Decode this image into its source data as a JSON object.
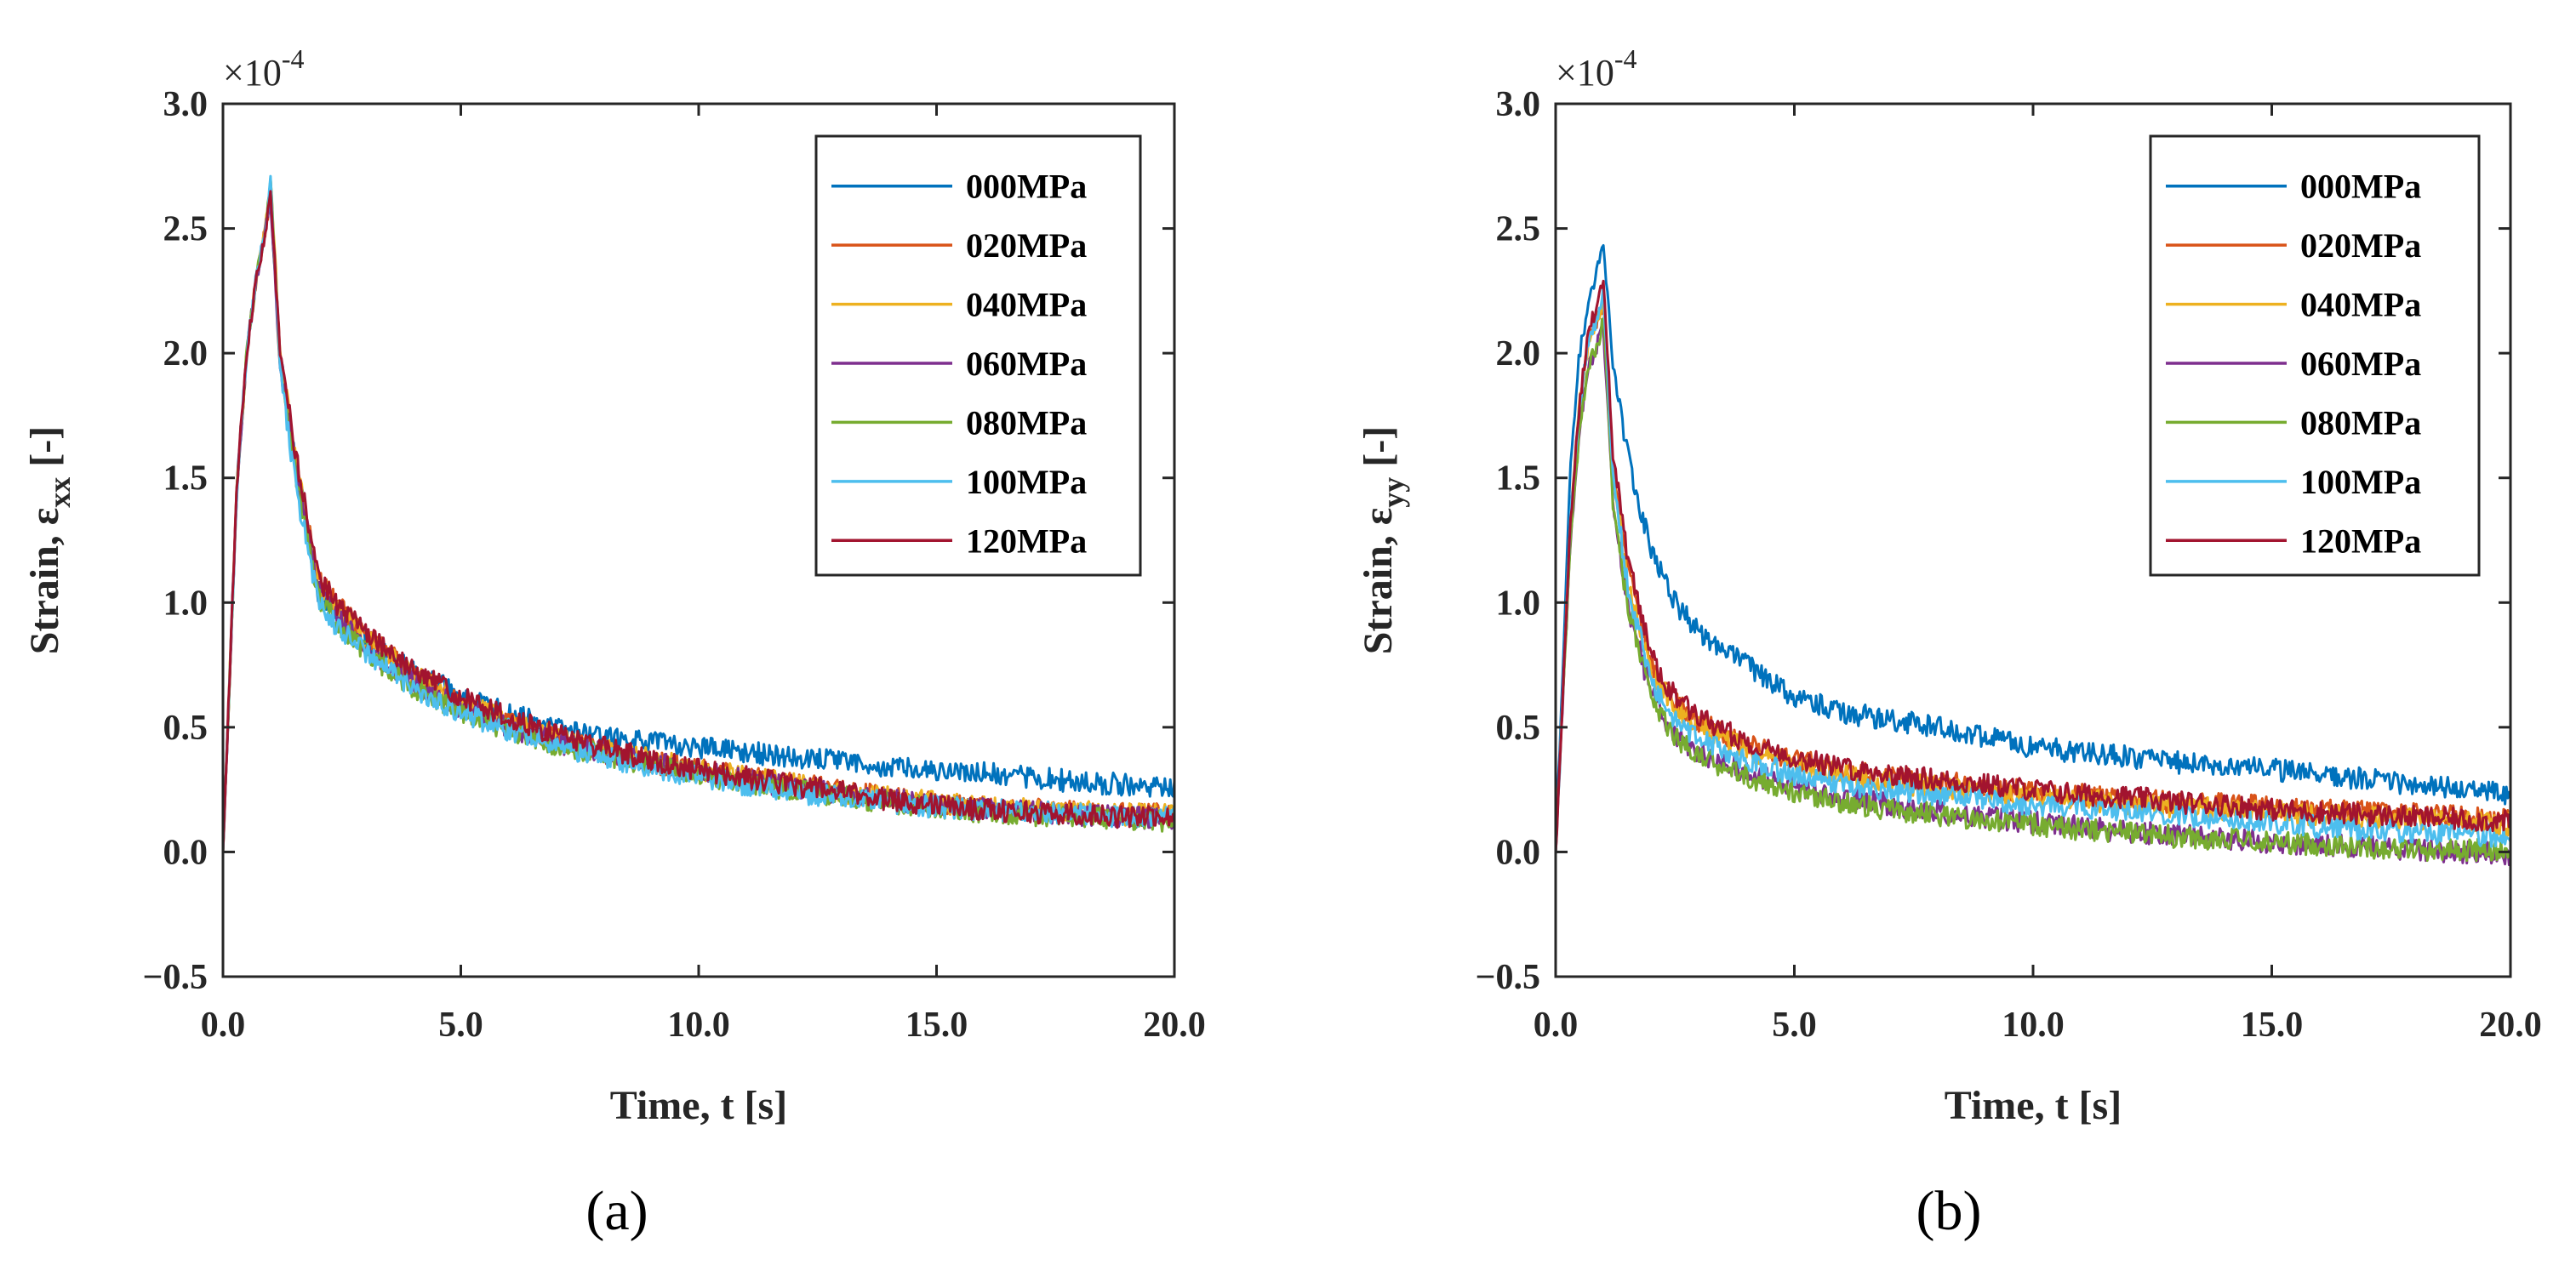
{
  "chart_data": [
    {
      "type": "line",
      "panel_label": "(a)",
      "xlabel": "Time, t [s]",
      "ylabel": "Strain, ε",
      "ylabel_sub": "xx",
      "ylabel_suffix": "[-]",
      "y_multiplier": "×10",
      "y_exponent": "-4",
      "xlim": [
        0,
        20
      ],
      "ylim": [
        -0.5,
        3.0
      ],
      "x_ticks": [
        0,
        5,
        10,
        15,
        20
      ],
      "x_tick_labels": [
        "0.0",
        "5.0",
        "10.0",
        "15.0",
        "20.0"
      ],
      "y_ticks": [
        -0.5,
        0,
        0.5,
        1.0,
        1.5,
        2.0,
        2.5,
        3.0
      ],
      "y_tick_labels": [
        "−0.5",
        "0.0",
        "0.5",
        "1.0",
        "1.5",
        "2.0",
        "2.5",
        "3.0"
      ],
      "legend_position": "top-right",
      "grid": false,
      "x": [
        0,
        0.1,
        0.3,
        0.5,
        0.7,
        0.9,
        1.0,
        1.2,
        1.5,
        2,
        2.5,
        3,
        4,
        5,
        6,
        7,
        8,
        9,
        10,
        11,
        12,
        13,
        14,
        15,
        16,
        17,
        18,
        19,
        20
      ],
      "series": [
        {
          "name": "000MPa",
          "color": "#0072BD",
          "values": [
            0,
            0.5,
            1.5,
            2.0,
            2.3,
            2.5,
            2.62,
            2.0,
            1.6,
            1.05,
            0.95,
            0.85,
            0.72,
            0.63,
            0.56,
            0.5,
            0.46,
            0.44,
            0.42,
            0.4,
            0.38,
            0.36,
            0.34,
            0.33,
            0.32,
            0.3,
            0.28,
            0.27,
            0.26
          ]
        },
        {
          "name": "020MPa",
          "color": "#D95319",
          "values": [
            0,
            0.5,
            1.5,
            2.0,
            2.3,
            2.5,
            2.65,
            2.0,
            1.6,
            1.1,
            0.97,
            0.87,
            0.72,
            0.6,
            0.52,
            0.45,
            0.4,
            0.36,
            0.33,
            0.3,
            0.27,
            0.25,
            0.22,
            0.2,
            0.18,
            0.17,
            0.16,
            0.15,
            0.15
          ]
        },
        {
          "name": "040MPa",
          "color": "#EDB120",
          "values": [
            0,
            0.5,
            1.5,
            2.0,
            2.3,
            2.5,
            2.72,
            2.0,
            1.6,
            1.08,
            0.95,
            0.85,
            0.71,
            0.6,
            0.52,
            0.46,
            0.41,
            0.37,
            0.33,
            0.3,
            0.27,
            0.24,
            0.22,
            0.2,
            0.18,
            0.17,
            0.16,
            0.15,
            0.15
          ]
        },
        {
          "name": "060MPa",
          "color": "#7E2F8E",
          "values": [
            0,
            0.5,
            1.5,
            2.0,
            2.3,
            2.5,
            2.6,
            1.95,
            1.58,
            1.05,
            0.92,
            0.82,
            0.68,
            0.58,
            0.5,
            0.44,
            0.4,
            0.36,
            0.32,
            0.29,
            0.26,
            0.23,
            0.21,
            0.19,
            0.17,
            0.16,
            0.15,
            0.14,
            0.13
          ]
        },
        {
          "name": "080MPa",
          "color": "#77AC30",
          "values": [
            0,
            0.5,
            1.5,
            2.0,
            2.3,
            2.5,
            2.7,
            1.95,
            1.55,
            1.02,
            0.9,
            0.8,
            0.66,
            0.56,
            0.49,
            0.43,
            0.39,
            0.35,
            0.31,
            0.28,
            0.25,
            0.22,
            0.2,
            0.18,
            0.16,
            0.15,
            0.14,
            0.13,
            0.12
          ]
        },
        {
          "name": "100MPa",
          "color": "#4DBEEE",
          "values": [
            0,
            0.5,
            1.5,
            2.0,
            2.3,
            2.5,
            2.68,
            1.95,
            1.5,
            1.0,
            0.88,
            0.8,
            0.66,
            0.56,
            0.49,
            0.43,
            0.38,
            0.34,
            0.3,
            0.27,
            0.24,
            0.22,
            0.2,
            0.18,
            0.17,
            0.16,
            0.15,
            0.14,
            0.14
          ]
        },
        {
          "name": "120MPa",
          "color": "#A2142F",
          "values": [
            0,
            0.5,
            1.5,
            2.0,
            2.3,
            2.5,
            2.65,
            2.0,
            1.62,
            1.1,
            0.97,
            0.88,
            0.73,
            0.62,
            0.54,
            0.47,
            0.42,
            0.37,
            0.33,
            0.3,
            0.27,
            0.24,
            0.21,
            0.19,
            0.17,
            0.16,
            0.15,
            0.14,
            0.14
          ]
        }
      ]
    },
    {
      "type": "line",
      "panel_label": "(b)",
      "xlabel": "Time, t [s]",
      "ylabel": "Strain, ε",
      "ylabel_sub": "yy",
      "ylabel_suffix": "[-]",
      "y_multiplier": "×10",
      "y_exponent": "-4",
      "xlim": [
        0,
        20
      ],
      "ylim": [
        -0.5,
        3.0
      ],
      "x_ticks": [
        0,
        5,
        10,
        15,
        20
      ],
      "x_tick_labels": [
        "0.0",
        "5.0",
        "10.0",
        "15.0",
        "20.0"
      ],
      "y_ticks": [
        -0.5,
        0,
        0.5,
        1.0,
        1.5,
        2.0,
        2.5,
        3.0
      ],
      "y_tick_labels": [
        "−0.5",
        "0.0",
        "0.5",
        "1.0",
        "1.5",
        "2.0",
        "2.5",
        "3.0"
      ],
      "legend_position": "top-right",
      "grid": false,
      "x": [
        0,
        0.1,
        0.3,
        0.5,
        0.7,
        0.9,
        1.0,
        1.2,
        1.5,
        2,
        2.5,
        3,
        4,
        5,
        6,
        7,
        8,
        9,
        10,
        11,
        12,
        13,
        14,
        15,
        16,
        17,
        18,
        19,
        20
      ],
      "series": [
        {
          "name": "000MPa",
          "color": "#0072BD",
          "values": [
            0,
            0.5,
            1.5,
            2.0,
            2.2,
            2.35,
            2.45,
            1.95,
            1.6,
            1.2,
            1.0,
            0.88,
            0.75,
            0.62,
            0.56,
            0.53,
            0.5,
            0.46,
            0.42,
            0.4,
            0.38,
            0.36,
            0.35,
            0.33,
            0.31,
            0.29,
            0.27,
            0.25,
            0.23
          ]
        },
        {
          "name": "020MPa",
          "color": "#D95319",
          "values": [
            0,
            0.4,
            1.3,
            1.8,
            2.05,
            2.15,
            2.2,
            1.55,
            1.15,
            0.75,
            0.6,
            0.52,
            0.43,
            0.37,
            0.33,
            0.3,
            0.28,
            0.26,
            0.24,
            0.23,
            0.21,
            0.2,
            0.19,
            0.18,
            0.17,
            0.16,
            0.15,
            0.14,
            0.13
          ]
        },
        {
          "name": "040MPa",
          "color": "#EDB120",
          "values": [
            0,
            0.4,
            1.3,
            1.8,
            2.05,
            2.15,
            2.2,
            1.5,
            1.1,
            0.72,
            0.57,
            0.5,
            0.41,
            0.35,
            0.31,
            0.28,
            0.26,
            0.24,
            0.22,
            0.21,
            0.19,
            0.18,
            0.17,
            0.16,
            0.15,
            0.14,
            0.13,
            0.12,
            0.11
          ]
        },
        {
          "name": "060MPa",
          "color": "#7E2F8E",
          "values": [
            0,
            0.4,
            1.2,
            1.7,
            1.95,
            2.05,
            2.1,
            1.4,
            1.0,
            0.63,
            0.47,
            0.4,
            0.32,
            0.26,
            0.22,
            0.19,
            0.16,
            0.14,
            0.12,
            0.1,
            0.08,
            0.07,
            0.05,
            0.04,
            0.03,
            0.02,
            0.01,
            0.0,
            -0.01
          ]
        },
        {
          "name": "080MPa",
          "color": "#77AC30",
          "values": [
            0,
            0.4,
            1.2,
            1.7,
            1.95,
            2.05,
            2.15,
            1.4,
            1.0,
            0.62,
            0.46,
            0.38,
            0.3,
            0.24,
            0.2,
            0.17,
            0.15,
            0.13,
            0.11,
            0.09,
            0.08,
            0.06,
            0.05,
            0.04,
            0.03,
            0.02,
            0.01,
            0.01,
            0.0
          ]
        },
        {
          "name": "100MPa",
          "color": "#4DBEEE",
          "values": [
            0,
            0.4,
            1.3,
            1.8,
            2.05,
            2.15,
            2.25,
            1.5,
            1.08,
            0.68,
            0.52,
            0.45,
            0.37,
            0.31,
            0.27,
            0.25,
            0.23,
            0.21,
            0.19,
            0.18,
            0.16,
            0.15,
            0.13,
            0.12,
            0.1,
            0.09,
            0.08,
            0.07,
            0.06
          ]
        },
        {
          "name": "120MPa",
          "color": "#A2142F",
          "values": [
            0,
            0.4,
            1.3,
            1.8,
            2.1,
            2.2,
            2.3,
            1.6,
            1.2,
            0.78,
            0.62,
            0.54,
            0.44,
            0.38,
            0.34,
            0.31,
            0.29,
            0.27,
            0.25,
            0.23,
            0.22,
            0.2,
            0.19,
            0.17,
            0.16,
            0.15,
            0.14,
            0.13,
            0.12
          ]
        }
      ]
    }
  ]
}
